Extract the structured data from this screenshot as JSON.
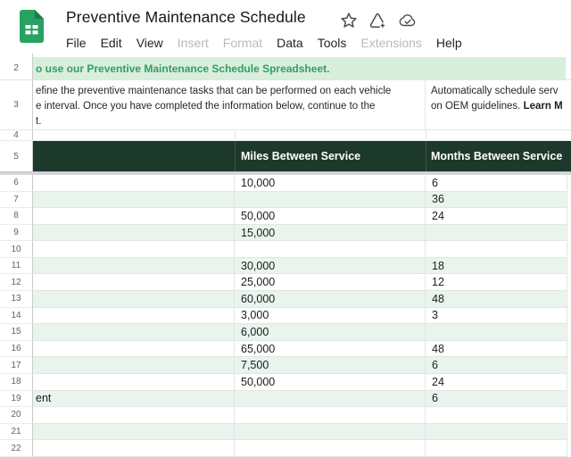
{
  "app": {
    "title": "Preventive Maintenance Schedule",
    "menu": [
      {
        "label": "File",
        "enabled": true
      },
      {
        "label": "Edit",
        "enabled": true
      },
      {
        "label": "View",
        "enabled": true
      },
      {
        "label": "Insert",
        "enabled": false
      },
      {
        "label": "Format",
        "enabled": false
      },
      {
        "label": "Data",
        "enabled": true
      },
      {
        "label": "Tools",
        "enabled": true
      },
      {
        "label": "Extensions",
        "enabled": false
      },
      {
        "label": "Help",
        "enabled": true
      }
    ],
    "title_icons": [
      "star-icon",
      "label-plus-icon",
      "cloud-check-icon"
    ]
  },
  "sheet": {
    "banner": {
      "row_num": "2",
      "text": "o use our Preventive Maintenance Schedule Spreadsheet."
    },
    "intro": {
      "row_num": "3",
      "left_lines": [
        "efine the preventive maintenance tasks that can be performed on each vehicle",
        "e interval. Once you have completed the information below, continue to the",
        "t."
      ],
      "right_line1": "Automatically schedule serv",
      "right_line2": "on OEM guidelines. ",
      "right_line2_bold": "Learn M"
    },
    "spacer_row_num": "4",
    "header": {
      "row_num": "5",
      "miles_label": "Miles Between Service",
      "months_label": "Months Between Service"
    },
    "rows": [
      {
        "num": "6",
        "task": "",
        "miles": "10,000",
        "months": "6"
      },
      {
        "num": "7",
        "task": "",
        "miles": "",
        "months": "36"
      },
      {
        "num": "8",
        "task": "",
        "miles": "50,000",
        "months": "24"
      },
      {
        "num": "9",
        "task": "",
        "miles": "15,000",
        "months": ""
      },
      {
        "num": "10",
        "task": "",
        "miles": "",
        "months": ""
      },
      {
        "num": "11",
        "task": "",
        "miles": "30,000",
        "months": "18"
      },
      {
        "num": "12",
        "task": "",
        "miles": "25,000",
        "months": "12"
      },
      {
        "num": "13",
        "task": "",
        "miles": "60,000",
        "months": "48"
      },
      {
        "num": "14",
        "task": "",
        "miles": "3,000",
        "months": "3"
      },
      {
        "num": "15",
        "task": "",
        "miles": "6,000",
        "months": ""
      },
      {
        "num": "16",
        "task": "",
        "miles": "65,000",
        "months": "48"
      },
      {
        "num": "17",
        "task": "",
        "miles": "7,500",
        "months": "6"
      },
      {
        "num": "18",
        "task": "",
        "miles": "50,000",
        "months": "24"
      },
      {
        "num": "19",
        "task": "ent",
        "miles": "",
        "months": "6"
      },
      {
        "num": "20",
        "task": "",
        "miles": "",
        "months": ""
      },
      {
        "num": "21",
        "task": "",
        "miles": "",
        "months": ""
      },
      {
        "num": "22",
        "task": "",
        "miles": "",
        "months": ""
      }
    ]
  },
  "colors": {
    "banner_bg": "#d9eedd",
    "banner_text": "#31a05f",
    "header_bg": "#1d392b",
    "row_stripe": "#e9f4ed",
    "logo_green": "#28a263",
    "logo_fold": "#1d7b4a",
    "chrome_icon_gray": "#474b4e"
  }
}
